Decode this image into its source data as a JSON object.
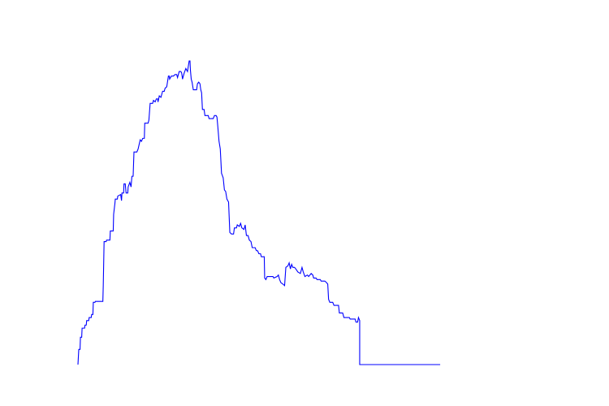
{
  "chart_data": {
    "type": "line",
    "title": "",
    "xlabel": "",
    "ylabel": "",
    "grid": false,
    "axes_visible": false,
    "xlim": [
      0,
      100
    ],
    "ylim": [
      0,
      100
    ],
    "series": [
      {
        "color": "#0000ff",
        "values": [
          [
            0.0,
            0.0
          ],
          [
            0.2,
            5.0
          ],
          [
            0.5,
            5.0
          ],
          [
            0.6,
            9.0
          ],
          [
            0.9,
            9.0
          ],
          [
            1.0,
            12.0
          ],
          [
            1.6,
            12.0
          ],
          [
            1.7,
            13.0
          ],
          [
            2.0,
            13.0
          ],
          [
            2.1,
            14.5
          ],
          [
            2.6,
            14.5
          ],
          [
            2.7,
            15.5
          ],
          [
            3.2,
            15.5
          ],
          [
            3.3,
            16.5
          ],
          [
            3.6,
            16.5
          ],
          [
            3.7,
            20.5
          ],
          [
            4.1,
            20.5
          ],
          [
            4.2,
            20.8
          ],
          [
            6.0,
            20.8
          ],
          [
            6.1,
            26.0
          ],
          [
            6.3,
            40.5
          ],
          [
            6.8,
            40.5
          ],
          [
            6.9,
            41.0
          ],
          [
            7.7,
            41.0
          ],
          [
            7.8,
            44.0
          ],
          [
            8.5,
            44.0
          ],
          [
            8.6,
            49.5
          ],
          [
            8.9,
            53.0
          ],
          [
            9.0,
            54.5
          ],
          [
            9.5,
            54.5
          ],
          [
            9.6,
            55.5
          ],
          [
            10.3,
            56.0
          ],
          [
            10.5,
            54.0
          ],
          [
            10.6,
            56.5
          ],
          [
            11.0,
            56.5
          ],
          [
            11.1,
            59.5
          ],
          [
            11.4,
            59.5
          ],
          [
            11.6,
            56.5
          ],
          [
            12.0,
            56.5
          ],
          [
            12.1,
            58.5
          ],
          [
            12.5,
            60.0
          ],
          [
            12.8,
            58.5
          ],
          [
            13.0,
            62.0
          ],
          [
            13.3,
            62.0
          ],
          [
            13.5,
            70.0
          ],
          [
            14.2,
            70.0
          ],
          [
            14.5,
            71.0
          ],
          [
            15.0,
            74.0
          ],
          [
            15.3,
            73.5
          ],
          [
            15.6,
            74.5
          ],
          [
            16.0,
            74.5
          ],
          [
            16.1,
            79.5
          ],
          [
            16.9,
            79.5
          ],
          [
            17.1,
            80.5
          ],
          [
            17.4,
            86.0
          ],
          [
            18.0,
            86.0
          ],
          [
            18.2,
            87.0
          ],
          [
            18.6,
            86.5
          ],
          [
            18.9,
            87.5
          ],
          [
            19.2,
            87.5
          ],
          [
            19.3,
            86.5
          ],
          [
            19.6,
            88.5
          ],
          [
            20.0,
            88.0
          ],
          [
            20.4,
            90.0
          ],
          [
            20.8,
            90.0
          ],
          [
            21.0,
            91.0
          ],
          [
            21.4,
            91.5
          ],
          [
            21.8,
            95.0
          ],
          [
            22.0,
            95.0
          ],
          [
            22.1,
            94.0
          ],
          [
            22.5,
            95.0
          ],
          [
            23.0,
            95.0
          ],
          [
            23.4,
            95.5
          ],
          [
            23.8,
            95.5
          ],
          [
            24.0,
            94.5
          ],
          [
            24.4,
            96.5
          ],
          [
            24.8,
            96.5
          ],
          [
            25.0,
            96.0
          ],
          [
            25.2,
            94.0
          ],
          [
            25.6,
            96.0
          ],
          [
            26.0,
            97.5
          ],
          [
            26.4,
            96.5
          ],
          [
            26.8,
            100.0
          ],
          [
            27.0,
            100.0
          ],
          [
            27.1,
            97.0
          ],
          [
            27.3,
            94.0
          ],
          [
            27.5,
            93.0
          ],
          [
            27.8,
            90.5
          ],
          [
            28.6,
            90.5
          ],
          [
            28.8,
            92.5
          ],
          [
            29.1,
            93.0
          ],
          [
            29.4,
            92.5
          ],
          [
            29.6,
            90.5
          ],
          [
            29.8,
            89.5
          ],
          [
            30.0,
            84.0
          ],
          [
            30.4,
            84.0
          ],
          [
            30.6,
            82.0
          ],
          [
            31.4,
            82.0
          ],
          [
            31.6,
            81.0
          ],
          [
            32.6,
            81.0
          ],
          [
            32.9,
            82.0
          ],
          [
            33.3,
            82.0
          ],
          [
            33.5,
            81.5
          ],
          [
            33.7,
            78.5
          ],
          [
            34.0,
            73.5
          ],
          [
            34.3,
            71.0
          ],
          [
            34.6,
            63.0
          ],
          [
            35.0,
            61.5
          ],
          [
            35.3,
            57.5
          ],
          [
            35.6,
            57.0
          ],
          [
            35.9,
            54.5
          ],
          [
            36.3,
            53.5
          ],
          [
            36.6,
            43.5
          ],
          [
            37.0,
            43.0
          ],
          [
            37.5,
            43.0
          ],
          [
            37.7,
            45.0
          ],
          [
            38.2,
            45.0
          ],
          [
            38.4,
            46.0
          ],
          [
            38.9,
            45.5
          ],
          [
            39.2,
            46.5
          ],
          [
            39.5,
            45.0
          ],
          [
            40.0,
            44.5
          ],
          [
            40.3,
            46.0
          ],
          [
            40.6,
            42.5
          ],
          [
            41.0,
            42.5
          ],
          [
            41.3,
            41.0
          ],
          [
            41.7,
            40.5
          ],
          [
            42.0,
            38.5
          ],
          [
            42.7,
            38.5
          ],
          [
            43.0,
            37.5
          ],
          [
            43.3,
            37.5
          ],
          [
            43.6,
            36.5
          ],
          [
            44.0,
            36.5
          ],
          [
            44.2,
            35.5
          ],
          [
            44.9,
            35.5
          ],
          [
            45.0,
            28.5
          ],
          [
            45.3,
            28.0
          ],
          [
            45.6,
            29.0
          ],
          [
            46.5,
            29.0
          ],
          [
            47.0,
            29.0
          ],
          [
            47.2,
            28.5
          ],
          [
            48.0,
            29.0
          ],
          [
            48.3,
            29.5
          ],
          [
            48.6,
            28.0
          ],
          [
            48.9,
            27.0
          ],
          [
            49.4,
            26.5
          ],
          [
            49.8,
            26.0
          ],
          [
            50.1,
            32.0
          ],
          [
            50.6,
            32.5
          ],
          [
            50.9,
            33.5
          ],
          [
            51.2,
            31.5
          ],
          [
            51.5,
            33.0
          ],
          [
            51.8,
            32.0
          ],
          [
            52.2,
            32.0
          ],
          [
            52.5,
            31.5
          ],
          [
            53.0,
            30.5
          ],
          [
            53.6,
            30.0
          ],
          [
            54.0,
            32.0
          ],
          [
            54.3,
            30.5
          ],
          [
            54.7,
            29.0
          ],
          [
            55.3,
            29.5
          ],
          [
            55.6,
            29.0
          ],
          [
            56.2,
            30.0
          ],
          [
            56.6,
            29.5
          ],
          [
            56.8,
            28.5
          ],
          [
            57.4,
            28.5
          ],
          [
            57.6,
            28.0
          ],
          [
            58.4,
            28.0
          ],
          [
            58.6,
            27.5
          ],
          [
            59.5,
            27.5
          ],
          [
            59.9,
            27.0
          ],
          [
            60.2,
            26.5
          ],
          [
            60.4,
            21.5
          ],
          [
            60.7,
            20.5
          ],
          [
            61.4,
            20.5
          ],
          [
            61.7,
            19.5
          ],
          [
            62.8,
            19.5
          ],
          [
            63.0,
            17.0
          ],
          [
            63.8,
            17.0
          ],
          [
            64.1,
            15.5
          ],
          [
            65.4,
            15.5
          ],
          [
            65.6,
            15.0
          ],
          [
            66.8,
            15.0
          ],
          [
            67.0,
            14.0
          ],
          [
            67.4,
            14.0
          ],
          [
            67.6,
            15.5
          ],
          [
            67.9,
            14.5
          ],
          [
            67.9,
            0.0
          ],
          [
            87.3,
            0.0
          ]
        ]
      }
    ]
  }
}
